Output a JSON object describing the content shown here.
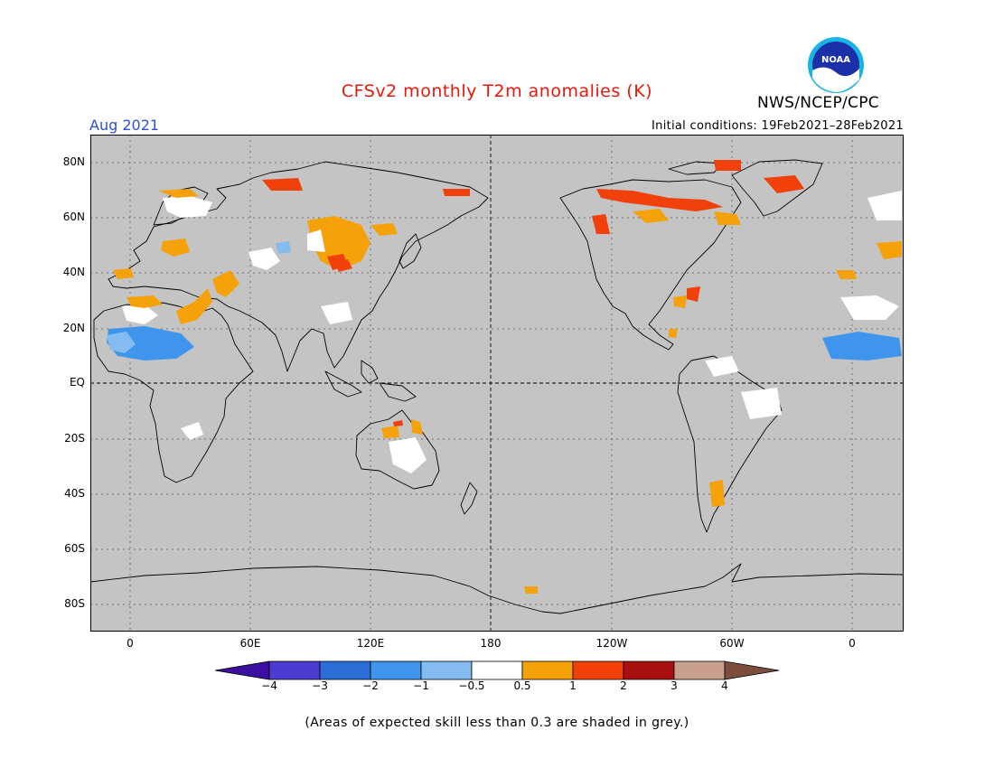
{
  "title": "CFSv2 monthly T2m anomalies (K)",
  "valid_month": "Aug 2021",
  "initial_conditions": "Initial conditions: 19Feb2021–28Feb2021",
  "agency": "NWS/NCEP/CPC",
  "logo_text": "NOAA",
  "lat_labels": [
    "80N",
    "60N",
    "40N",
    "20N",
    "EQ",
    "20S",
    "40S",
    "60S",
    "80S"
  ],
  "lon_labels": [
    "0",
    "60E",
    "120E",
    "180",
    "120W",
    "60W",
    "0"
  ],
  "colorbar": {
    "colors": [
      "#3c0fa0",
      "#4b3bd0",
      "#2c6ed8",
      "#3f95ec",
      "#85bcf0",
      "#ffffff",
      "#f5a10a",
      "#f2400a",
      "#a81010",
      "#c8a08e",
      "#7c4c3c"
    ],
    "labels": [
      "−4",
      "−3",
      "−2",
      "−1",
      "−0.5",
      "0.5",
      "1",
      "2",
      "3",
      "4"
    ]
  },
  "map_colors": {
    "ocean": "#c4c4c4",
    "coast": "#000000",
    "white": "#ffffff",
    "orange": "#f5a10a",
    "red": "#f2400a",
    "lightblue": "#85bcf0",
    "blue": "#3f95ec"
  },
  "footnote": "(Areas of expected skill less than 0.3 are shaded in grey.)"
}
